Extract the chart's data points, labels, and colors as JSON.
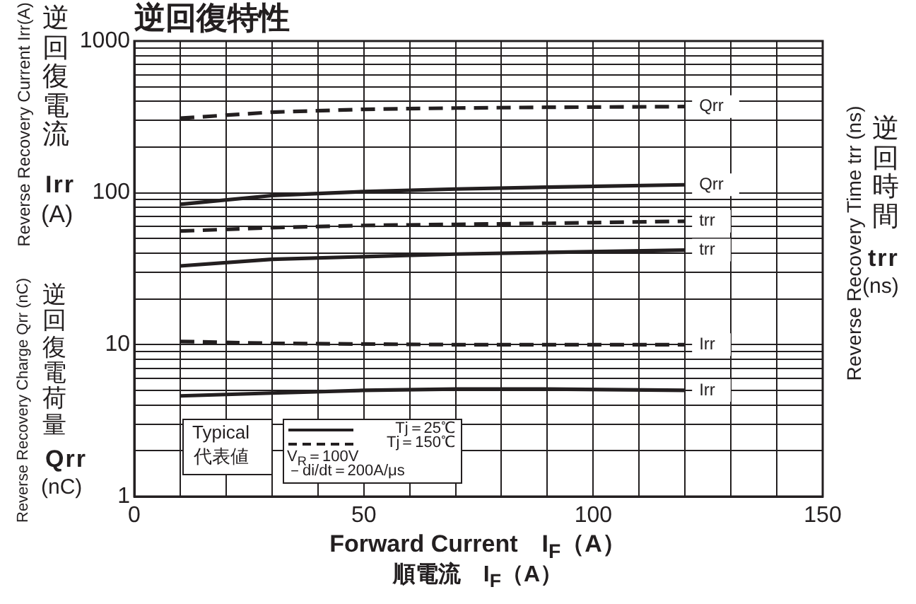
{
  "chart_data": {
    "type": "line",
    "title": "逆回復特性",
    "xlabel": "Forward Current　I$_{F}$（A）",
    "ylabel": "Reverse Recovery Current Irr(A)",
    "y2label": "Reverse Recovery Time trr (ns)",
    "annotations": [
      "順電流　I$_{F}$（A）",
      "Reverse Recovery Charge Qrr (nC)",
      "逆回復電流",
      "Irr",
      "(A)",
      "逆回復電荷量",
      "Qrr",
      "(nC)",
      "逆回時間",
      "trr",
      "(ns)",
      "Typical",
      "代表値",
      "Tj＝25℃",
      "Tj＝150℃",
      "V$_{R}$＝100V",
      "－di/dt＝200A/μs"
    ],
    "x": [
      10,
      30,
      50,
      70,
      90,
      120
    ],
    "series": [
      {
        "name": "Qrr",
        "color": "#231f20",
        "line_style": "dashed",
        "values": [
          310,
          340,
          355,
          362,
          366,
          370
        ]
      },
      {
        "name": "Qrr",
        "color": "#231f20",
        "line_style": "solid",
        "values": [
          84,
          96,
          102,
          106,
          109,
          113
        ]
      },
      {
        "name": "trr",
        "color": "#231f20",
        "line_style": "dashed",
        "values": [
          56,
          59,
          61,
          62,
          63,
          65
        ]
      },
      {
        "name": "trr",
        "color": "#231f20",
        "line_style": "solid",
        "values": [
          33,
          36.5,
          38,
          39.5,
          40.5,
          42
        ]
      },
      {
        "name": "Irr",
        "color": "#231f20",
        "line_style": "dashed",
        "values": [
          10.5,
          10.2,
          10.1,
          10,
          10,
          10
        ]
      },
      {
        "name": "Irr",
        "color": "#231f20",
        "line_style": "solid",
        "values": [
          4.6,
          4.8,
          5,
          5.1,
          5.1,
          5
        ]
      }
    ],
    "log": true,
    "grid": true,
    "marker": "none",
    "legend": false,
    "xlim": [
      0,
      150
    ],
    "xticks": [
      0,
      {
        "value": 10,
        "label": null
      },
      {
        "value": 20,
        "label": null
      },
      {
        "value": 30,
        "label": null
      },
      {
        "value": 40,
        "label": null
      },
      50,
      {
        "value": 60,
        "label": null
      },
      {
        "value": 70,
        "label": null
      },
      {
        "value": 80,
        "label": null
      },
      {
        "value": 90,
        "label": null
      },
      100,
      {
        "value": 110,
        "label": null
      },
      {
        "value": 120,
        "label": null
      },
      {
        "value": 130,
        "label": null
      },
      {
        "value": 140,
        "label": null
      },
      150
    ],
    "ylim": [
      1,
      1000
    ],
    "yticks": [
      1,
      {
        "value": 2,
        "label": null
      },
      {
        "value": 3,
        "label": null
      },
      {
        "value": 4,
        "label": null
      },
      {
        "value": 5,
        "label": null
      },
      {
        "value": 6,
        "label": null
      },
      {
        "value": 7,
        "label": null
      },
      {
        "value": 8,
        "label": null
      },
      {
        "value": 9,
        "label": null
      },
      10,
      {
        "value": 20,
        "label": null
      },
      {
        "value": 30,
        "label": null
      },
      {
        "value": 40,
        "label": null
      },
      {
        "value": 50,
        "label": null
      },
      {
        "value": 60,
        "label": null
      },
      {
        "value": 70,
        "label": null
      },
      {
        "value": 80,
        "label": null
      },
      {
        "value": 90,
        "label": null
      },
      100,
      {
        "value": 200,
        "label": null
      },
      {
        "value": 300,
        "label": null
      },
      {
        "value": 400,
        "label": null
      },
      {
        "value": 500,
        "label": null
      },
      {
        "value": 600,
        "label": null
      },
      {
        "value": 700,
        "label": null
      },
      {
        "value": 800,
        "label": null
      },
      {
        "value": 900,
        "label": null
      },
      1000
    ]
  }
}
